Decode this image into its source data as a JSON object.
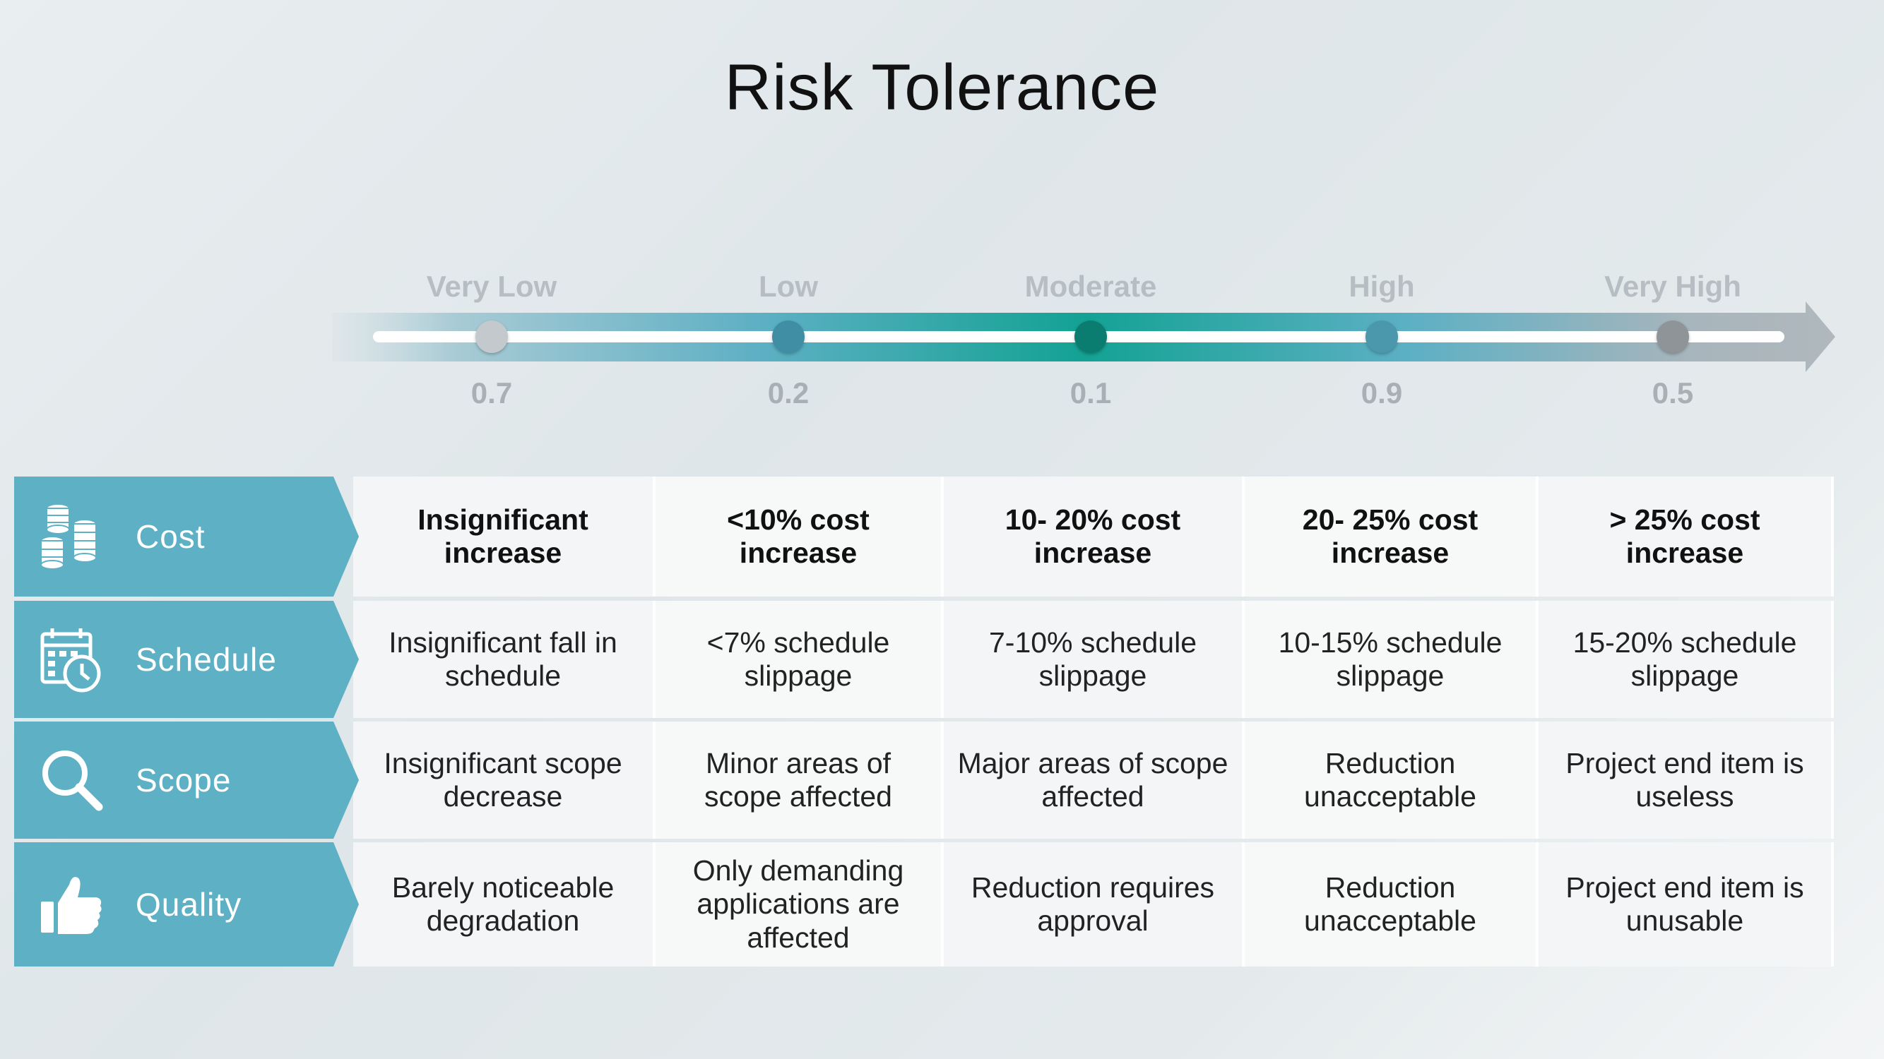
{
  "title": "Risk Tolerance",
  "scale": {
    "levels": [
      {
        "label": "Very Low",
        "value": "0.7",
        "dot_color": "#c3c9cc"
      },
      {
        "label": "Low",
        "value": "0.2",
        "dot_color": "#3f8ea3"
      },
      {
        "label": "Moderate",
        "value": "0.1",
        "dot_color": "#0b7d70"
      },
      {
        "label": "High",
        "value": "0.9",
        "dot_color": "#4b97ab"
      },
      {
        "label": "Very High",
        "value": "0.5",
        "dot_color": "#8e9498"
      }
    ],
    "colors": {
      "teal": "#17a598",
      "blue": "#5eb0c4",
      "gray": "#b7bfc4"
    }
  },
  "table": {
    "rows": [
      {
        "category": "Cost",
        "icon": "coins-icon",
        "bold": true,
        "cells": [
          "Insignificant increase",
          "<10% cost increase",
          "10- 20% cost increase",
          "20- 25% cost increase",
          "> 25% cost increase"
        ]
      },
      {
        "category": "Schedule",
        "icon": "calendar-clock-icon",
        "bold": false,
        "cells": [
          "Insignificant fall in schedule",
          "<7% schedule slippage",
          "7-10% schedule slippage",
          "10-15% schedule slippage",
          "15-20% schedule slippage"
        ]
      },
      {
        "category": "Scope",
        "icon": "magnifier-icon",
        "bold": false,
        "cells": [
          "Insignificant scope decrease",
          "Minor areas of scope affected",
          "Major areas of scope affected",
          "Reduction unacceptable",
          "Project end item is useless"
        ]
      },
      {
        "category": "Quality",
        "icon": "thumbs-up-icon",
        "bold": false,
        "cells": [
          "Barely noticeable degradation",
          "Only demanding applications are affected",
          "Reduction requires approval",
          "Reduction unacceptable",
          "Project end item is unusable"
        ]
      }
    ]
  }
}
